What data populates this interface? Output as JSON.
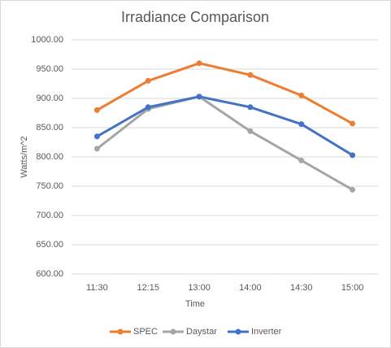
{
  "chart_data": {
    "type": "line",
    "title": "Irradiance Comparison",
    "x_label": "Time",
    "y_label": "Watts/m^2",
    "categories": [
      "11:30",
      "12:15",
      "13:00",
      "14:00",
      "14:30",
      "15:00"
    ],
    "series": [
      {
        "name": "SPEC",
        "color": "#ed7d31",
        "values": [
          880,
          930,
          960,
          940,
          905,
          857
        ]
      },
      {
        "name": "Daystar",
        "color": "#a5a5a5",
        "values": [
          814,
          882,
          903,
          844,
          794,
          744
        ]
      },
      {
        "name": "Inverter",
        "color": "#4472c4",
        "values": [
          835,
          885,
          903,
          885,
          856,
          803
        ]
      }
    ],
    "ylim": [
      600,
      1000
    ],
    "yticks": [
      {
        "value": 600,
        "label": "600.00"
      },
      {
        "value": 650,
        "label": "650.00"
      },
      {
        "value": 700,
        "label": "700.00"
      },
      {
        "value": 750,
        "label": "750.00"
      },
      {
        "value": 800,
        "label": "800.00"
      },
      {
        "value": 850,
        "label": "850.00"
      },
      {
        "value": 900,
        "label": "900.00"
      },
      {
        "value": 950,
        "label": "950.00"
      },
      {
        "value": 1000,
        "label": "1000.00"
      }
    ],
    "grid": true,
    "legend": "bottom"
  }
}
